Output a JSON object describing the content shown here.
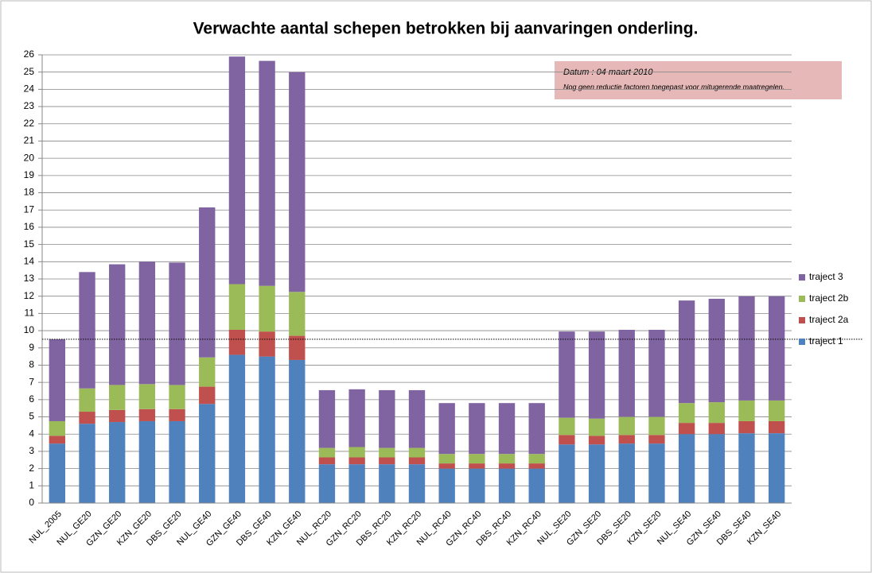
{
  "chart_data": {
    "type": "stacked_bar",
    "title": "Verwachte aantal schepen betrokken bij aanvaringen onderling.",
    "annotations": [
      "Datum : 04 maart 2010",
      "Nog geen reductie factoren toegepast voor mitugerende maatregelen."
    ],
    "categories": [
      "NUL_2005",
      "NUL_GE20",
      "GZN_GE20",
      "KZN_GE20",
      "DBS_GE20",
      "NUL_GE40",
      "GZN_GE40",
      "DBS_GE40",
      "KZN_GE40",
      "NUL_RC20",
      "GZN_RC20",
      "DBS_RC20",
      "KZN_RC20",
      "NUL_RC40",
      "GZN_RC40",
      "DBS_RC40",
      "KZN_RC40",
      "NUL_SE20",
      "GZN_SE20",
      "DBS_SE20",
      "KZN_SE20",
      "NUL_SE40",
      "GZN_SE40",
      "DBS_SE40",
      "KZN_SE40"
    ],
    "series": [
      {
        "name": "traject 1",
        "color": "#4f81bd",
        "values": [
          3.45,
          4.6,
          4.7,
          4.75,
          4.75,
          5.75,
          8.6,
          8.5,
          8.3,
          2.25,
          2.25,
          2.25,
          2.25,
          2.0,
          2.0,
          2.0,
          2.0,
          3.4,
          3.4,
          3.45,
          3.45,
          4.0,
          4.0,
          4.05,
          4.05
        ]
      },
      {
        "name": "traject 2a",
        "color": "#c0504d",
        "values": [
          0.45,
          0.7,
          0.7,
          0.7,
          0.7,
          1.0,
          1.45,
          1.45,
          1.4,
          0.4,
          0.4,
          0.4,
          0.4,
          0.3,
          0.3,
          0.3,
          0.3,
          0.55,
          0.5,
          0.5,
          0.5,
          0.65,
          0.65,
          0.7,
          0.7
        ]
      },
      {
        "name": "traject 2b",
        "color": "#9bbb59",
        "values": [
          0.85,
          1.35,
          1.45,
          1.45,
          1.4,
          1.7,
          2.65,
          2.65,
          2.55,
          0.55,
          0.6,
          0.55,
          0.55,
          0.55,
          0.55,
          0.55,
          0.55,
          1.0,
          1.0,
          1.05,
          1.05,
          1.15,
          1.2,
          1.2,
          1.2
        ]
      },
      {
        "name": "traject 3",
        "color": "#8064a2",
        "values": [
          4.75,
          6.75,
          7.0,
          7.1,
          7.1,
          8.7,
          13.2,
          13.05,
          12.75,
          3.35,
          3.35,
          3.35,
          3.35,
          2.95,
          2.95,
          2.95,
          2.95,
          5.0,
          5.05,
          5.05,
          5.05,
          5.95,
          6.0,
          6.05,
          6.05
        ]
      }
    ],
    "ylim": [
      0,
      26
    ],
    "yticks": [
      0,
      1,
      2,
      3,
      4,
      5,
      6,
      7,
      8,
      9,
      10,
      11,
      12,
      13,
      14,
      15,
      16,
      17,
      18,
      19,
      20,
      21,
      22,
      23,
      24,
      25,
      26
    ],
    "grid": true,
    "reference_line": 9.5,
    "legend": "right"
  }
}
